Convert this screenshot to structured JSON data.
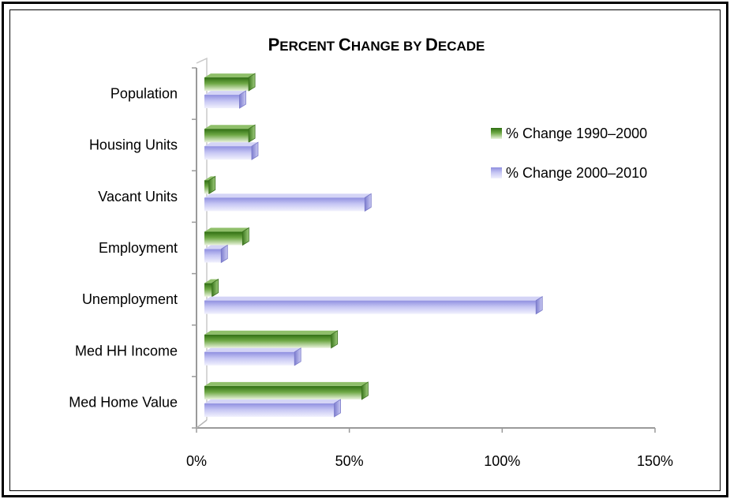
{
  "chart_data": {
    "type": "bar",
    "orientation": "horizontal",
    "title": "Percent Change by Decade",
    "categories": [
      "Population",
      "Housing Units",
      "Vacant Units",
      "Employment",
      "Unemployment",
      "Med HH Income",
      "Med Home Value"
    ],
    "series": [
      {
        "name": "% Change 1990–2000",
        "values": [
          15,
          15,
          2,
          13,
          3,
          42,
          52
        ],
        "color": "#4a8a2a"
      },
      {
        "name": "% Change 2000–2010",
        "values": [
          12,
          16,
          53,
          6,
          109,
          30,
          43
        ],
        "color": "#a9a9ee"
      }
    ],
    "xlim": [
      0,
      150
    ],
    "xticks": [
      "0%",
      "50%",
      "100%",
      "150%"
    ],
    "xtick_values": [
      0,
      50,
      100,
      150
    ],
    "legend_position": "right",
    "grid": false
  }
}
